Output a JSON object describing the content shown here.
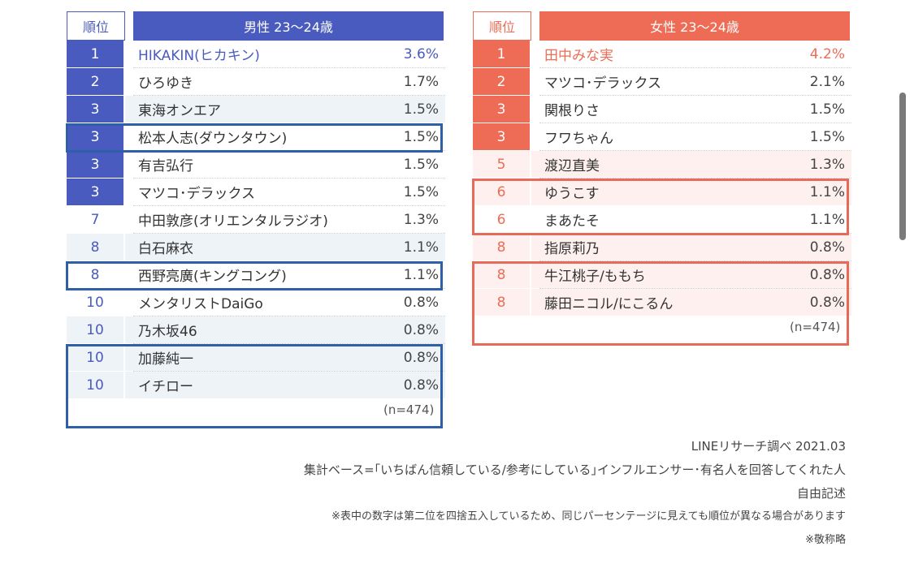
{
  "male": {
    "rank_header": "順位",
    "title": "男性 23〜24歳",
    "sample": "(n=474)",
    "color": "#4a5bbf",
    "rows": [
      {
        "rank": "1",
        "name": "HIKAKIN(ヒカキン)",
        "pct": "3.6%"
      },
      {
        "rank": "2",
        "name": "ひろゆき",
        "pct": "1.7%"
      },
      {
        "rank": "3",
        "name": "東海オンエア",
        "pct": "1.5%"
      },
      {
        "rank": "3",
        "name": "松本人志(ダウンタウン)",
        "pct": "1.5%"
      },
      {
        "rank": "3",
        "name": "有吉弘行",
        "pct": "1.5%"
      },
      {
        "rank": "3",
        "name": "マツコ･デラックス",
        "pct": "1.5%"
      },
      {
        "rank": "7",
        "name": "中田敦彦(オリエンタルラジオ)",
        "pct": "1.3%"
      },
      {
        "rank": "8",
        "name": "白石麻衣",
        "pct": "1.1%"
      },
      {
        "rank": "8",
        "name": "西野亮廣(キングコング)",
        "pct": "1.1%"
      },
      {
        "rank": "10",
        "name": "メンタリストDaiGo",
        "pct": "0.8%"
      },
      {
        "rank": "10",
        "name": "乃木坂46",
        "pct": "0.8%"
      },
      {
        "rank": "10",
        "name": "加藤純一",
        "pct": "0.8%"
      },
      {
        "rank": "10",
        "name": "イチロー",
        "pct": "0.8%"
      }
    ]
  },
  "female": {
    "rank_header": "順位",
    "title": "女性 23〜24歳",
    "sample": "(n=474)",
    "color": "#ee6b55",
    "rows": [
      {
        "rank": "1",
        "name": "田中みな実",
        "pct": "4.2%"
      },
      {
        "rank": "2",
        "name": "マツコ･デラックス",
        "pct": "2.1%"
      },
      {
        "rank": "3",
        "name": "関根りさ",
        "pct": "1.5%"
      },
      {
        "rank": "3",
        "name": "フワちゃん",
        "pct": "1.5%"
      },
      {
        "rank": "5",
        "name": "渡辺直美",
        "pct": "1.3%"
      },
      {
        "rank": "6",
        "name": "ゆうこす",
        "pct": "1.1%"
      },
      {
        "rank": "6",
        "name": "まあたそ",
        "pct": "1.1%"
      },
      {
        "rank": "8",
        "name": "指原莉乃",
        "pct": "0.8%"
      },
      {
        "rank": "8",
        "name": "牛江桃子/ももち",
        "pct": "0.8%"
      },
      {
        "rank": "8",
        "name": "藤田ニコル/にこるん",
        "pct": "0.8%"
      }
    ]
  },
  "notes": {
    "source": "LINEリサーチ調べ 2021.03",
    "base": "集計ベース=｢いちばん信頼している/参考にしている｣インフルエンサー･有名人を回答してくれた人",
    "method": "自由記述",
    "rounding": "※表中の数字は第二位を四捨五入しているため、同じパーセンテージに見えても順位が異なる場合があります",
    "honorific": "※敬称略"
  }
}
